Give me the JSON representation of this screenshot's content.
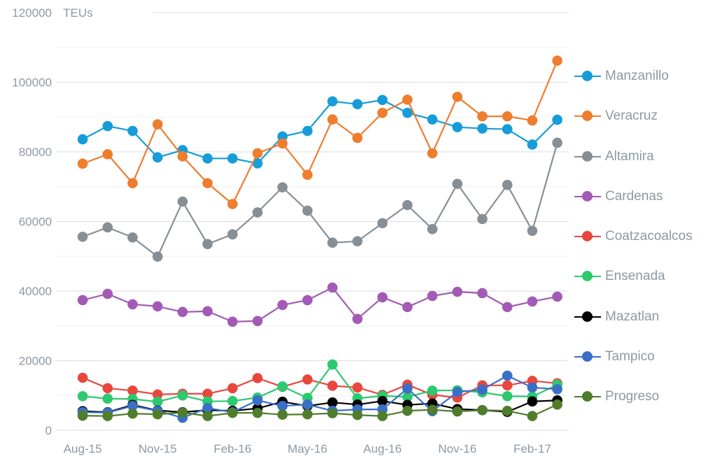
{
  "chart": {
    "unit_label": "TEUs",
    "background": "#ffffff",
    "text_color": "#8d99a4",
    "grid_major_color": "#d9dde0",
    "grid_minor_color": "#eef0f2"
  },
  "chart_data": {
    "type": "line",
    "title": "",
    "ylabel": "TEUs",
    "xlabel": "",
    "ylim": [
      0,
      120000
    ],
    "y_major_ticks": [
      0,
      20000,
      40000,
      60000,
      80000,
      100000,
      120000
    ],
    "y_minor_step": 10000,
    "grid": true,
    "legend_position": "right",
    "x": [
      "Aug-15",
      "Sep-15",
      "Oct-15",
      "Nov-15",
      "Dec-15",
      "Jan-16",
      "Feb-16",
      "Mar-16",
      "Apr-16",
      "May-16",
      "Jun-16",
      "Jul-16",
      "Aug-16",
      "Sep-16",
      "Oct-16",
      "Nov-16",
      "Dec-16",
      "Jan-17",
      "Feb-17",
      "Mar-17"
    ],
    "x_tick_indices": [
      0,
      3,
      6,
      9,
      12,
      15,
      18
    ],
    "x_tick_labels": [
      "Aug-15",
      "Nov-15",
      "Feb-16",
      "May-16",
      "Aug-16",
      "Nov-16",
      "Feb-17"
    ],
    "series": [
      {
        "name": "Manzanillo",
        "color": "#169cd8",
        "values": [
          83600,
          87400,
          86000,
          78400,
          80500,
          78100,
          78100,
          76700,
          84400,
          86000,
          94500,
          93700,
          94900,
          91200,
          89300,
          87100,
          86700,
          86500,
          82100,
          89200
        ]
      },
      {
        "name": "Veracruz",
        "color": "#ee7d2e",
        "values": [
          76600,
          79300,
          71000,
          87900,
          78700,
          71000,
          65000,
          79600,
          82400,
          73400,
          89300,
          84000,
          91200,
          95000,
          79600,
          95800,
          90200,
          90200,
          89000,
          106200
        ]
      },
      {
        "name": "Altamira",
        "color": "#878f96",
        "values": [
          55600,
          58300,
          55400,
          49900,
          65700,
          53500,
          56300,
          62600,
          69800,
          63100,
          53900,
          54300,
          59500,
          64700,
          57800,
          70800,
          60700,
          70500,
          57300,
          82600
        ]
      },
      {
        "name": "Cardenas",
        "color": "#a35ab6",
        "values": [
          37400,
          39200,
          36200,
          35600,
          34000,
          34200,
          31200,
          31400,
          36000,
          37400,
          41000,
          32000,
          38200,
          35400,
          38600,
          39800,
          39400,
          35400,
          37000,
          38400
        ]
      },
      {
        "name": "Coatzacoalcos",
        "color": "#e8473e",
        "values": [
          15100,
          12100,
          11400,
          10300,
          10500,
          10500,
          12100,
          15000,
          12500,
          14600,
          12800,
          12300,
          10200,
          13100,
          10200,
          9400,
          12900,
          12900,
          14200,
          13500
        ]
      },
      {
        "name": "Ensenada",
        "color": "#2cc96f",
        "values": [
          9800,
          9100,
          9000,
          8200,
          10000,
          8300,
          8400,
          9400,
          12600,
          9300,
          18900,
          9200,
          9900,
          9600,
          11400,
          11500,
          10900,
          9800,
          9700,
          13100
        ]
      },
      {
        "name": "Mazatlan",
        "color": "#000000",
        "values": [
          5500,
          5200,
          7300,
          5700,
          5200,
          5800,
          5600,
          6300,
          8200,
          7000,
          8000,
          7400,
          8400,
          7300,
          7700,
          6100,
          5800,
          5300,
          8300,
          8600
        ]
      },
      {
        "name": "Tampico",
        "color": "#3b6fc7",
        "values": [
          5200,
          5100,
          7000,
          5600,
          3600,
          6400,
          5200,
          8600,
          7000,
          7400,
          5600,
          6000,
          6000,
          12000,
          5500,
          11000,
          11700,
          15700,
          12300,
          11800
        ]
      },
      {
        "name": "Progreso",
        "color": "#507d2c",
        "values": [
          4200,
          4100,
          4800,
          4600,
          5100,
          4100,
          5000,
          5000,
          4500,
          4600,
          4900,
          4400,
          4100,
          5600,
          5900,
          5400,
          5800,
          5600,
          4100,
          7400
        ]
      }
    ]
  }
}
